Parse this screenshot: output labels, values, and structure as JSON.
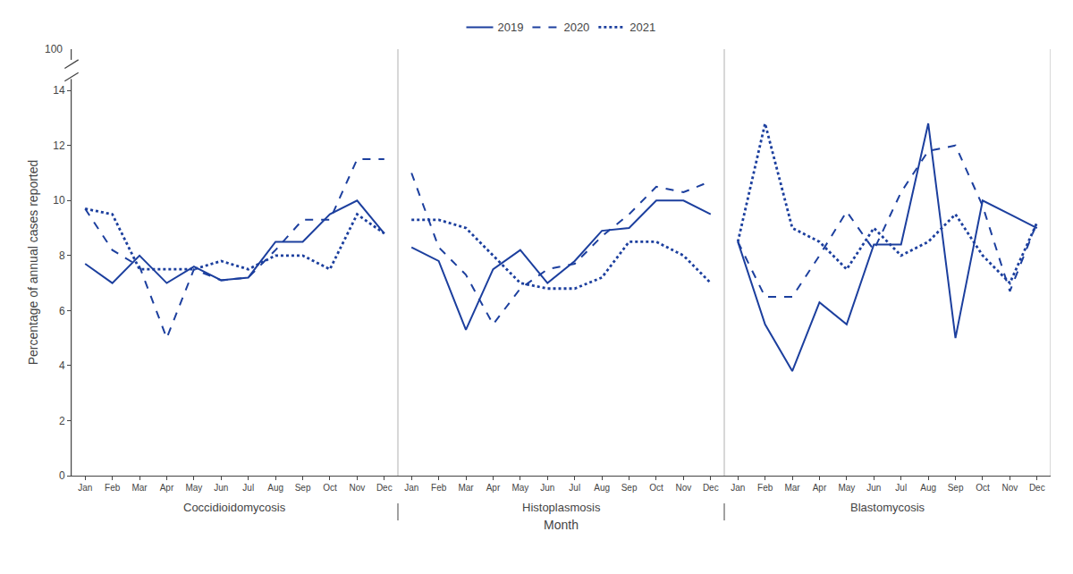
{
  "chart_data": {
    "type": "line",
    "categories": [
      "Jan",
      "Feb",
      "Mar",
      "Apr",
      "May",
      "Jun",
      "Jul",
      "Aug",
      "Sep",
      "Oct",
      "Nov",
      "Dec",
      "Jan",
      "Feb",
      "Mar",
      "Apr",
      "May",
      "Jun",
      "Jul",
      "Aug",
      "Sep",
      "Oct",
      "Nov",
      "Dec",
      "Jan",
      "Feb",
      "Mar",
      "Apr",
      "May",
      "Jun",
      "Jul",
      "Aug",
      "Sep",
      "Oct",
      "Nov",
      "Dec"
    ],
    "x_group_labels": [
      "Coccidioidomycosis",
      "Histoplasmosis",
      "Blastomycosis"
    ],
    "xlabel": "Month",
    "ylabel": "Percentage of annual cases reported",
    "series": [
      {
        "name": "2019",
        "color": "#1c3f9e",
        "line_style": "solid",
        "values": [
          7.7,
          7.0,
          8.0,
          7.0,
          7.6,
          7.1,
          7.2,
          8.5,
          8.5,
          9.5,
          10.0,
          8.8,
          8.3,
          7.8,
          5.3,
          7.5,
          8.2,
          7.0,
          7.8,
          8.9,
          9.0,
          10.0,
          10.0,
          9.5,
          8.5,
          5.5,
          3.8,
          6.3,
          5.5,
          8.4,
          8.4,
          12.8,
          5.0,
          10.0,
          9.5,
          9.0
        ]
      },
      {
        "name": "2020",
        "color": "#1c3f9e",
        "line_style": "dashed",
        "values": [
          9.7,
          8.2,
          7.6,
          5.0,
          7.5,
          7.1,
          7.2,
          8.2,
          9.3,
          9.3,
          11.5,
          11.5,
          11.0,
          8.3,
          7.3,
          5.5,
          6.8,
          7.5,
          7.7,
          8.7,
          9.5,
          10.5,
          10.3,
          10.7,
          8.5,
          6.5,
          6.5,
          8.0,
          9.6,
          8.2,
          10.3,
          11.8,
          12.0,
          9.8,
          6.7,
          9.2
        ]
      },
      {
        "name": "2021",
        "color": "#1c3f9e",
        "line_style": "dotted",
        "values": [
          9.7,
          9.5,
          7.5,
          7.5,
          7.5,
          7.8,
          7.5,
          8.0,
          8.0,
          7.5,
          9.5,
          8.8,
          9.3,
          9.3,
          9.0,
          8.0,
          7.0,
          6.8,
          6.8,
          7.2,
          8.5,
          8.5,
          8.0,
          7.0,
          8.5,
          12.8,
          9.0,
          8.5,
          7.5,
          9.0,
          8.0,
          8.5,
          9.5,
          8.0,
          7.0,
          9.2
        ]
      }
    ],
    "ylim": [
      0,
      15.5
    ],
    "yticks": [
      0,
      2,
      4,
      6,
      8,
      10,
      12,
      14
    ],
    "annotations": [
      "100"
    ],
    "grid": false,
    "legend": "top"
  }
}
